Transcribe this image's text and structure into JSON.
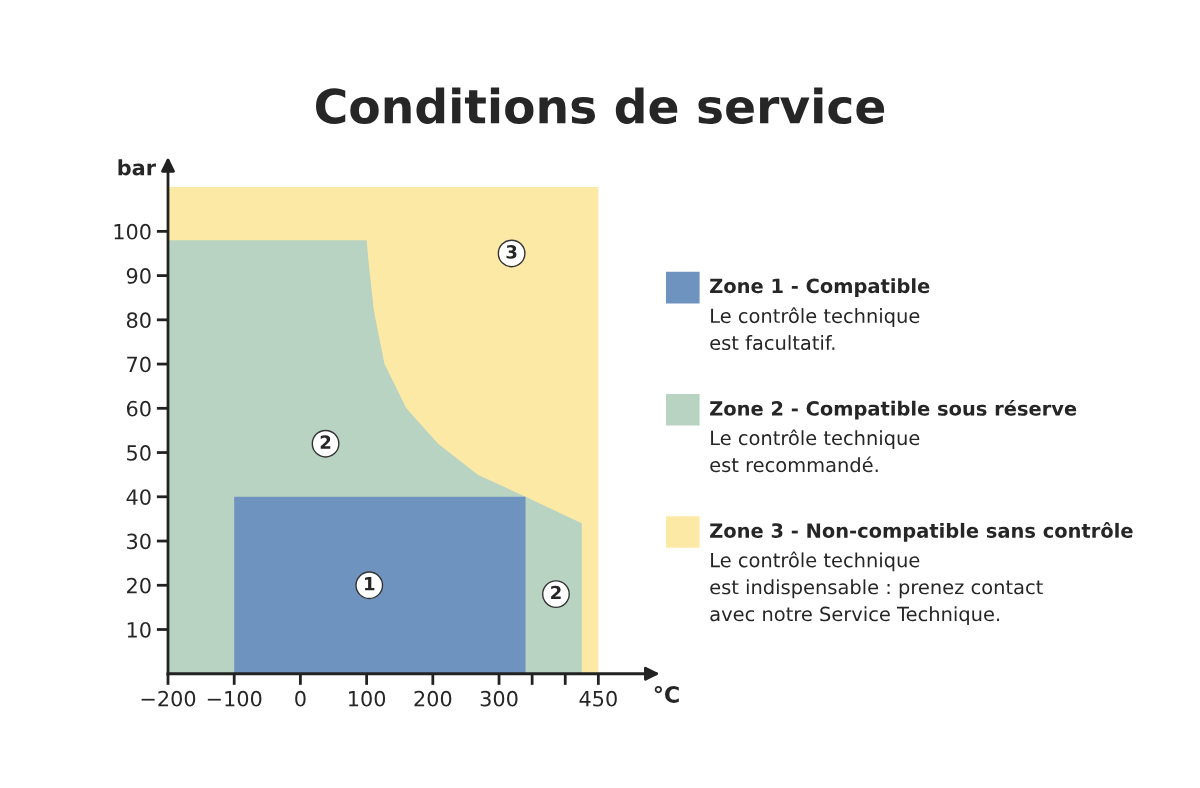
{
  "chart_data": {
    "type": "area",
    "title": "Conditions de service",
    "xlabel": "°C",
    "ylabel": "bar",
    "series": [
      {
        "name": "Zone 3 - Non-compatible sans contrôle",
        "color": "#fde9a6",
        "x": [
          -200,
          450
        ],
        "values": [
          110,
          110
        ]
      },
      {
        "name": "Zone 2 - Compatible sous réserve",
        "color": "#b8d3c2",
        "x": [
          -200,
          100,
          103,
          111,
          127,
          160,
          208,
          268,
          340,
          425
        ],
        "values": [
          98,
          98,
          93,
          82,
          70,
          60,
          52,
          45,
          40,
          34
        ]
      },
      {
        "name": "Zone 1 - Compatible",
        "color": "#6f93bf",
        "x": [
          -100,
          340
        ],
        "values": [
          40,
          40
        ]
      }
    ],
    "annotations": [
      {
        "text": "3",
        "x": 319,
        "y": 95
      },
      {
        "text": "2",
        "x": 38,
        "y": 52
      },
      {
        "text": "1",
        "x": 104,
        "y": 20
      },
      {
        "text": "2",
        "x": 386,
        "y": 18
      },
      "Le contrôle technique\nest facultatif.",
      "Le contrôle technique\nest recommandé.",
      "Le contrôle technique\nest indispensable : prenez contact\navec notre Service Technique."
    ],
    "xlim": [
      -200,
      525
    ],
    "ylim": [
      0,
      114
    ],
    "xticks": [
      -200,
      -100,
      0,
      100,
      200,
      300,
      {
        "value": 350,
        "label": null
      },
      {
        "value": 400,
        "label": null
      },
      450
    ],
    "yticks": [
      10,
      20,
      30,
      40,
      50,
      60,
      70,
      80,
      90,
      100
    ],
    "legend": "right",
    "grid": false
  }
}
